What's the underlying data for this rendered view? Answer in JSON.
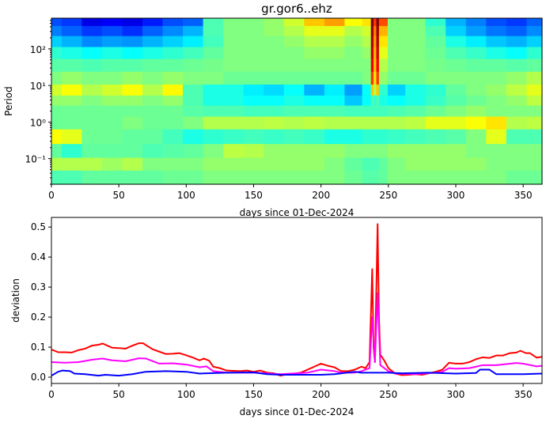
{
  "chart_data": [
    {
      "type": "heatmap",
      "title": "gr.gor6..ehz",
      "xlabel": "days since 01-Dec-2024",
      "ylabel": "Period",
      "xlim": [
        0,
        364
      ],
      "ylim": [
        0.02,
        690
      ],
      "yscale": "log",
      "xticks": [
        "0",
        "50",
        "100",
        "150",
        "200",
        "250",
        "300",
        "350"
      ],
      "yticks": [
        {
          "value": 100,
          "label": "10²"
        },
        {
          "value": 10,
          "label": "10¹"
        },
        {
          "value": 1,
          "label": "10⁰"
        },
        {
          "value": 0.1,
          "label": "10⁻¹"
        }
      ],
      "colormap": "jet",
      "x": [
        0,
        15,
        30,
        45,
        60,
        75,
        90,
        105,
        120,
        135,
        150,
        165,
        180,
        195,
        210,
        225,
        236,
        238,
        240,
        242,
        244,
        255,
        270,
        285,
        300,
        315,
        330,
        345,
        360
      ],
      "log10_period": [
        2.75,
        2.5,
        2.2,
        1.9,
        1.55,
        1.2,
        0.85,
        0.6,
        0.3,
        0.0,
        -0.4,
        -0.8,
        -1.15,
        -1.5
      ],
      "values": [
        [
          0.2,
          0.18,
          0.1,
          0.12,
          0.1,
          0.15,
          0.2,
          0.22,
          0.45,
          0.5,
          0.5,
          0.52,
          0.58,
          0.68,
          0.72,
          0.62,
          0.65,
          1.0,
          0.82,
          1.0,
          0.8,
          0.5,
          0.5,
          0.42,
          0.3,
          0.25,
          0.2,
          0.18,
          0.22
        ],
        [
          0.25,
          0.22,
          0.18,
          0.2,
          0.17,
          0.22,
          0.26,
          0.3,
          0.45,
          0.5,
          0.5,
          0.52,
          0.55,
          0.6,
          0.6,
          0.55,
          0.58,
          0.97,
          0.75,
          0.97,
          0.7,
          0.5,
          0.5,
          0.45,
          0.33,
          0.28,
          0.24,
          0.22,
          0.26
        ],
        [
          0.33,
          0.3,
          0.26,
          0.28,
          0.27,
          0.3,
          0.33,
          0.36,
          0.44,
          0.5,
          0.5,
          0.5,
          0.52,
          0.55,
          0.55,
          0.52,
          0.55,
          0.95,
          0.72,
          0.95,
          0.65,
          0.5,
          0.5,
          0.47,
          0.4,
          0.36,
          0.32,
          0.3,
          0.33
        ],
        [
          0.42,
          0.4,
          0.38,
          0.4,
          0.38,
          0.4,
          0.42,
          0.44,
          0.47,
          0.5,
          0.5,
          0.5,
          0.5,
          0.52,
          0.52,
          0.5,
          0.52,
          0.92,
          0.7,
          0.92,
          0.6,
          0.5,
          0.5,
          0.48,
          0.45,
          0.43,
          0.4,
          0.38,
          0.42
        ],
        [
          0.46,
          0.46,
          0.45,
          0.46,
          0.46,
          0.47,
          0.47,
          0.48,
          0.49,
          0.5,
          0.5,
          0.5,
          0.5,
          0.5,
          0.5,
          0.5,
          0.5,
          0.88,
          0.68,
          0.88,
          0.55,
          0.5,
          0.5,
          0.49,
          0.48,
          0.47,
          0.47,
          0.46,
          0.47
        ],
        [
          0.5,
          0.52,
          0.5,
          0.5,
          0.52,
          0.5,
          0.52,
          0.5,
          0.5,
          0.48,
          0.48,
          0.48,
          0.48,
          0.48,
          0.48,
          0.48,
          0.5,
          0.82,
          0.65,
          0.82,
          0.52,
          0.48,
          0.48,
          0.5,
          0.5,
          0.5,
          0.5,
          0.52,
          0.55
        ],
        [
          0.58,
          0.62,
          0.55,
          0.58,
          0.62,
          0.55,
          0.63,
          0.45,
          0.4,
          0.4,
          0.36,
          0.34,
          0.38,
          0.3,
          0.36,
          0.28,
          0.38,
          0.68,
          0.55,
          0.68,
          0.42,
          0.33,
          0.4,
          0.42,
          0.47,
          0.5,
          0.52,
          0.56,
          0.6
        ],
        [
          0.52,
          0.52,
          0.5,
          0.52,
          0.52,
          0.5,
          0.52,
          0.45,
          0.4,
          0.4,
          0.38,
          0.38,
          0.4,
          0.38,
          0.38,
          0.32,
          0.38,
          0.45,
          0.42,
          0.45,
          0.4,
          0.38,
          0.4,
          0.43,
          0.46,
          0.48,
          0.5,
          0.52,
          0.56
        ],
        [
          0.48,
          0.48,
          0.48,
          0.48,
          0.48,
          0.48,
          0.48,
          0.46,
          0.45,
          0.45,
          0.44,
          0.44,
          0.45,
          0.45,
          0.45,
          0.44,
          0.44,
          0.44,
          0.44,
          0.44,
          0.44,
          0.45,
          0.46,
          0.48,
          0.5,
          0.52,
          0.5,
          0.5,
          0.5
        ],
        [
          0.48,
          0.48,
          0.48,
          0.48,
          0.5,
          0.48,
          0.48,
          0.5,
          0.55,
          0.55,
          0.55,
          0.56,
          0.55,
          0.56,
          0.55,
          0.55,
          0.55,
          0.55,
          0.55,
          0.55,
          0.55,
          0.55,
          0.56,
          0.6,
          0.6,
          0.62,
          0.65,
          0.55,
          0.56
        ],
        [
          0.62,
          0.6,
          0.48,
          0.48,
          0.47,
          0.47,
          0.44,
          0.4,
          0.42,
          0.43,
          0.44,
          0.43,
          0.44,
          0.43,
          0.4,
          0.4,
          0.42,
          0.42,
          0.42,
          0.42,
          0.42,
          0.43,
          0.44,
          0.45,
          0.46,
          0.5,
          0.6,
          0.45,
          0.45
        ],
        [
          0.47,
          0.42,
          0.47,
          0.47,
          0.47,
          0.45,
          0.46,
          0.47,
          0.5,
          0.56,
          0.55,
          0.52,
          0.52,
          0.52,
          0.52,
          0.5,
          0.5,
          0.5,
          0.5,
          0.5,
          0.5,
          0.52,
          0.52,
          0.52,
          0.52,
          0.5,
          0.5,
          0.5,
          0.5
        ],
        [
          0.55,
          0.55,
          0.55,
          0.53,
          0.55,
          0.5,
          0.5,
          0.5,
          0.52,
          0.52,
          0.52,
          0.52,
          0.52,
          0.52,
          0.5,
          0.47,
          0.45,
          0.45,
          0.45,
          0.45,
          0.47,
          0.5,
          0.52,
          0.52,
          0.52,
          0.52,
          0.5,
          0.5,
          0.5
        ],
        [
          0.45,
          0.45,
          0.47,
          0.47,
          0.47,
          0.47,
          0.48,
          0.48,
          0.5,
          0.5,
          0.5,
          0.5,
          0.5,
          0.5,
          0.5,
          0.48,
          0.46,
          0.46,
          0.46,
          0.46,
          0.47,
          0.5,
          0.5,
          0.5,
          0.5,
          0.5,
          0.5,
          0.48,
          0.48
        ]
      ]
    },
    {
      "type": "line",
      "xlabel": "days since 01-Dec-2024",
      "ylabel": "deviation",
      "xlim": [
        0,
        364
      ],
      "ylim": [
        -0.021,
        0.532
      ],
      "xticks": [
        "0",
        "50",
        "100",
        "150",
        "200",
        "250",
        "300",
        "350"
      ],
      "yticks": [
        "0.0",
        "0.1",
        "0.2",
        "0.3",
        "0.4",
        "0.5"
      ],
      "series": [
        {
          "color": "#ff0000",
          "points": [
            [
              0,
              0.092
            ],
            [
              5,
              0.083
            ],
            [
              10,
              0.083
            ],
            [
              15,
              0.082
            ],
            [
              20,
              0.09
            ],
            [
              25,
              0.095
            ],
            [
              30,
              0.105
            ],
            [
              35,
              0.108
            ],
            [
              38,
              0.112
            ],
            [
              45,
              0.098
            ],
            [
              50,
              0.097
            ],
            [
              55,
              0.095
            ],
            [
              60,
              0.105
            ],
            [
              65,
              0.113
            ],
            [
              68,
              0.113
            ],
            [
              75,
              0.093
            ],
            [
              80,
              0.085
            ],
            [
              85,
              0.077
            ],
            [
              90,
              0.078
            ],
            [
              95,
              0.08
            ],
            [
              100,
              0.073
            ],
            [
              105,
              0.065
            ],
            [
              110,
              0.056
            ],
            [
              113,
              0.062
            ],
            [
              117,
              0.055
            ],
            [
              120,
              0.035
            ],
            [
              125,
              0.03
            ],
            [
              130,
              0.022
            ],
            [
              140,
              0.02
            ],
            [
              145,
              0.022
            ],
            [
              150,
              0.018
            ],
            [
              155,
              0.022
            ],
            [
              160,
              0.015
            ],
            [
              165,
              0.013
            ],
            [
              170,
              0.005
            ],
            [
              175,
              0.01
            ],
            [
              180,
              0.012
            ],
            [
              185,
              0.015
            ],
            [
              190,
              0.025
            ],
            [
              195,
              0.035
            ],
            [
              200,
              0.045
            ],
            [
              205,
              0.038
            ],
            [
              210,
              0.033
            ],
            [
              215,
              0.02
            ],
            [
              220,
              0.02
            ],
            [
              225,
              0.025
            ],
            [
              230,
              0.035
            ],
            [
              233,
              0.03
            ],
            [
              236,
              0.05
            ],
            [
              238,
              0.36
            ],
            [
              239,
              0.1
            ],
            [
              240,
              0.05
            ],
            [
              242,
              0.51
            ],
            [
              243,
              0.2
            ],
            [
              244,
              0.075
            ],
            [
              247,
              0.055
            ],
            [
              250,
              0.03
            ],
            [
              255,
              0.012
            ],
            [
              260,
              0.007
            ],
            [
              265,
              0.008
            ],
            [
              270,
              0.01
            ],
            [
              275,
              0.008
            ],
            [
              280,
              0.013
            ],
            [
              285,
              0.018
            ],
            [
              290,
              0.025
            ],
            [
              295,
              0.048
            ],
            [
              300,
              0.045
            ],
            [
              305,
              0.045
            ],
            [
              310,
              0.05
            ],
            [
              315,
              0.06
            ],
            [
              320,
              0.066
            ],
            [
              325,
              0.064
            ],
            [
              330,
              0.072
            ],
            [
              335,
              0.072
            ],
            [
              340,
              0.08
            ],
            [
              345,
              0.082
            ],
            [
              348,
              0.088
            ],
            [
              352,
              0.08
            ],
            [
              355,
              0.08
            ],
            [
              360,
              0.065
            ],
            [
              364,
              0.068
            ]
          ]
        },
        {
          "color": "#ff00ff",
          "points": [
            [
              0,
              0.05
            ],
            [
              10,
              0.048
            ],
            [
              20,
              0.05
            ],
            [
              30,
              0.058
            ],
            [
              38,
              0.062
            ],
            [
              45,
              0.056
            ],
            [
              55,
              0.053
            ],
            [
              65,
              0.063
            ],
            [
              70,
              0.062
            ],
            [
              80,
              0.045
            ],
            [
              90,
              0.046
            ],
            [
              100,
              0.042
            ],
            [
              110,
              0.033
            ],
            [
              115,
              0.036
            ],
            [
              120,
              0.02
            ],
            [
              130,
              0.015
            ],
            [
              150,
              0.015
            ],
            [
              170,
              0.01
            ],
            [
              190,
              0.015
            ],
            [
              200,
              0.025
            ],
            [
              210,
              0.02
            ],
            [
              215,
              0.015
            ],
            [
              225,
              0.015
            ],
            [
              230,
              0.02
            ],
            [
              236,
              0.03
            ],
            [
              238,
              0.2
            ],
            [
              240,
              0.05
            ],
            [
              242,
              0.28
            ],
            [
              244,
              0.04
            ],
            [
              250,
              0.02
            ],
            [
              255,
              0.012
            ],
            [
              270,
              0.01
            ],
            [
              285,
              0.015
            ],
            [
              290,
              0.018
            ],
            [
              295,
              0.03
            ],
            [
              300,
              0.028
            ],
            [
              310,
              0.03
            ],
            [
              315,
              0.035
            ],
            [
              320,
              0.04
            ],
            [
              330,
              0.04
            ],
            [
              345,
              0.047
            ],
            [
              350,
              0.045
            ],
            [
              360,
              0.036
            ],
            [
              364,
              0.038
            ]
          ]
        },
        {
          "color": "#0000ff",
          "points": [
            [
              0,
              0.005
            ],
            [
              5,
              0.018
            ],
            [
              8,
              0.022
            ],
            [
              14,
              0.02
            ],
            [
              17,
              0.012
            ],
            [
              25,
              0.01
            ],
            [
              35,
              0.005
            ],
            [
              40,
              0.008
            ],
            [
              50,
              0.005
            ],
            [
              60,
              0.01
            ],
            [
              70,
              0.018
            ],
            [
              85,
              0.02
            ],
            [
              100,
              0.018
            ],
            [
              110,
              0.012
            ],
            [
              130,
              0.015
            ],
            [
              150,
              0.016
            ],
            [
              160,
              0.01
            ],
            [
              170,
              0.008
            ],
            [
              200,
              0.008
            ],
            [
              210,
              0.01
            ],
            [
              225,
              0.018
            ],
            [
              230,
              0.015
            ],
            [
              240,
              0.015
            ],
            [
              250,
              0.015
            ],
            [
              260,
              0.013
            ],
            [
              280,
              0.015
            ],
            [
              300,
              0.012
            ],
            [
              315,
              0.014
            ],
            [
              318,
              0.025
            ],
            [
              325,
              0.025
            ],
            [
              330,
              0.01
            ],
            [
              350,
              0.01
            ],
            [
              364,
              0.012
            ]
          ]
        }
      ]
    }
  ]
}
